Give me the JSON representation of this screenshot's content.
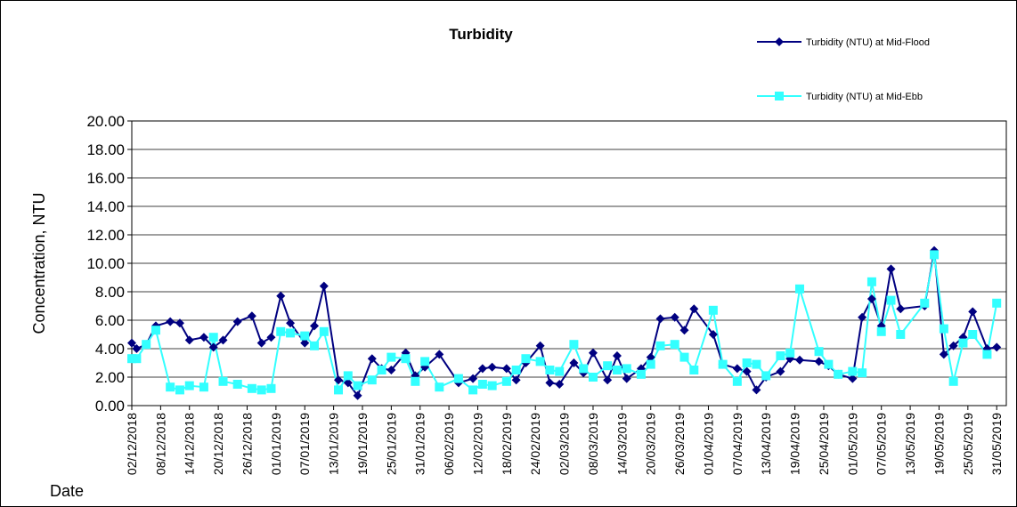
{
  "chart_data": {
    "type": "line",
    "title": "Turbidity",
    "y_label": "Concentration, NTU",
    "x_label": "Date",
    "x": [
      "02/12/2018",
      "03/12/2018",
      "05/12/2018",
      "07/12/2018",
      "10/12/2018",
      "12/12/2018",
      "14/12/2018",
      "17/12/2018",
      "19/12/2018",
      "21/12/2018",
      "24/12/2018",
      "27/12/2018",
      "29/12/2018",
      "31/12/2018",
      "02/01/2019",
      "04/01/2019",
      "07/01/2019",
      "09/01/2019",
      "11/01/2019",
      "14/01/2019",
      "16/01/2019",
      "18/01/2019",
      "21/01/2019",
      "23/01/2019",
      "25/01/2019",
      "28/01/2019",
      "30/01/2019",
      "01/02/2019",
      "04/02/2019",
      "08/02/2019",
      "11/02/2019",
      "13/02/2019",
      "15/02/2019",
      "18/02/2019",
      "20/02/2019",
      "22/02/2019",
      "25/02/2019",
      "27/02/2019",
      "01/03/2019",
      "04/03/2019",
      "06/03/2019",
      "08/03/2019",
      "11/03/2019",
      "13/03/2019",
      "15/03/2019",
      "18/03/2019",
      "20/03/2019",
      "22/03/2019",
      "25/03/2019",
      "27/03/2019",
      "29/03/2019",
      "02/04/2019",
      "04/04/2019",
      "07/04/2019",
      "09/04/2019",
      "11/04/2019",
      "13/04/2019",
      "16/04/2019",
      "18/04/2019",
      "20/04/2019",
      "24/04/2019",
      "26/04/2019",
      "28/04/2019",
      "01/05/2019",
      "03/05/2019",
      "05/05/2019",
      "07/05/2019",
      "09/05/2019",
      "11/05/2019",
      "16/05/2019",
      "18/05/2019",
      "20/05/2019",
      "22/05/2019",
      "24/05/2019",
      "26/05/2019",
      "29/05/2019",
      "31/05/2019"
    ],
    "series": [
      {
        "name": "Turbidity (NTU) at Mid-Flood",
        "color": "#000080",
        "marker": "diamond",
        "values": [
          4.4,
          4.0,
          4.3,
          5.6,
          5.9,
          5.8,
          4.6,
          4.8,
          4.1,
          4.6,
          5.9,
          6.3,
          4.4,
          4.8,
          7.7,
          5.8,
          4.4,
          5.6,
          8.4,
          1.8,
          1.6,
          0.7,
          3.3,
          2.6,
          2.5,
          3.7,
          2.1,
          2.7,
          3.6,
          1.6,
          1.9,
          2.6,
          2.7,
          2.6,
          1.8,
          3.0,
          4.2,
          1.6,
          1.5,
          3.0,
          2.3,
          3.7,
          1.8,
          3.5,
          1.9,
          2.6,
          3.4,
          6.1,
          6.2,
          5.3,
          6.8,
          5.0,
          2.9,
          2.6,
          2.4,
          1.1,
          2.0,
          2.4,
          3.3,
          3.2,
          3.1,
          2.8,
          2.2,
          1.9,
          6.2,
          7.5,
          5.6,
          9.6,
          6.8,
          7.0,
          10.9,
          3.6,
          4.2,
          4.8,
          6.6,
          4.0,
          4.1
        ]
      },
      {
        "name": "Turbidity (NTU) at Mid-Ebb",
        "color": "#33FFFF",
        "marker": "square",
        "values": [
          3.3,
          3.3,
          4.3,
          5.3,
          1.3,
          1.1,
          1.4,
          1.3,
          4.8,
          1.7,
          1.5,
          1.2,
          1.1,
          1.2,
          5.2,
          5.1,
          4.9,
          4.2,
          5.2,
          1.1,
          2.1,
          1.4,
          1.8,
          2.5,
          3.4,
          3.3,
          1.7,
          3.1,
          1.3,
          1.9,
          1.1,
          1.5,
          1.4,
          1.7,
          2.5,
          3.3,
          3.1,
          2.5,
          2.4,
          4.3,
          2.6,
          2.0,
          2.8,
          2.5,
          2.6,
          2.2,
          2.9,
          4.2,
          4.3,
          3.4,
          2.5,
          6.7,
          2.9,
          1.7,
          3.0,
          2.9,
          2.1,
          3.5,
          3.7,
          8.2,
          3.8,
          2.9,
          2.2,
          2.4,
          2.3,
          8.7,
          5.2,
          7.4,
          5.0,
          7.2,
          10.6,
          5.4,
          1.7,
          4.4,
          5.0,
          3.6,
          7.2
        ]
      }
    ],
    "xlim": [
      "02/12/2018",
      "02/06/2019"
    ],
    "xticks": [
      "02/12/2018",
      "08/12/2018",
      "14/12/2018",
      "20/12/2018",
      "26/12/2018",
      "01/01/2019",
      "07/01/2019",
      "13/01/2019",
      "19/01/2019",
      "25/01/2019",
      "31/01/2019",
      "06/02/2019",
      "12/02/2019",
      "18/02/2019",
      "24/02/2019",
      "02/03/2019",
      "08/03/2019",
      "14/03/2019",
      "20/03/2019",
      "26/03/2019",
      "01/04/2019",
      "07/04/2019",
      "13/04/2019",
      "19/04/2019",
      "25/04/2019",
      "01/05/2019",
      "07/05/2019",
      "13/05/2019",
      "19/05/2019",
      "25/05/2019",
      "31/05/2019"
    ],
    "ylim": [
      0,
      20
    ],
    "yticks": [
      {
        "value": 0,
        "label": "0.00"
      },
      {
        "value": 2,
        "label": "2.00"
      },
      {
        "value": 4,
        "label": "4.00"
      },
      {
        "value": 6,
        "label": "6.00"
      },
      {
        "value": 8,
        "label": "8.00"
      },
      {
        "value": 10,
        "label": "10.00"
      },
      {
        "value": 12,
        "label": "12.00"
      },
      {
        "value": 14,
        "label": "14.00"
      },
      {
        "value": 16,
        "label": "16.00"
      },
      {
        "value": 18,
        "label": "18.00"
      },
      {
        "value": 20,
        "label": "20.00"
      }
    ],
    "grid": true,
    "legend": "top-right"
  }
}
